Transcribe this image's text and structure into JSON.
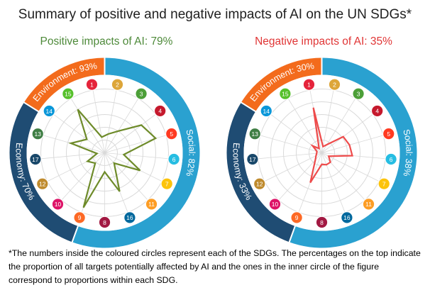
{
  "title": "Summary of positive and negative impacts of AI on the UN SDGs*",
  "footnote": "*The numbers inside the coloured circles represent each of the SDGs. The percentages on the top indicate the proportion of all targets potentially affected by AI and the ones in the inner circle of the figure correspond to proportions within each SDG.",
  "colors": {
    "environment": "#f36b1c",
    "social": "#2aa1d0",
    "economy": "#1f4c73",
    "positive_line": "#6e8b2a",
    "negative_line": "#ee4b4b",
    "grid": "#d9d9d9"
  },
  "sdg_colors": {
    "1": "#e5243b",
    "2": "#dda63a",
    "3": "#4c9f38",
    "4": "#c5192d",
    "5": "#ff3a21",
    "6": "#26bde2",
    "7": "#fcc30b",
    "8": "#a21942",
    "9": "#fd6925",
    "10": "#dd1367",
    "11": "#fd9d24",
    "12": "#bf8b2e",
    "13": "#3f7e44",
    "14": "#0a97d9",
    "15": "#56c02b",
    "16": "#00689d",
    "17": "#19486a"
  },
  "chart_data": [
    {
      "type": "radar",
      "subtitle": "Positive impacts of AI: 79%",
      "series_color": "positive_line",
      "sdg_order": [
        1,
        2,
        3,
        4,
        5,
        6,
        7,
        11,
        16,
        8,
        9,
        10,
        12,
        17,
        13,
        14,
        15
      ],
      "ring": [
        {
          "name": "Social",
          "label": "Social: 82%",
          "value": 82
        },
        {
          "name": "Economy",
          "label": "Economy: 70%",
          "value": 70
        },
        {
          "name": "Environment",
          "label": "Environment: 93%",
          "value": 93
        }
      ],
      "values": [
        0.25,
        0.3,
        0.4,
        0.72,
        0.83,
        0.3,
        0.62,
        0.22,
        0.65,
        0.3,
        0.92,
        0.22,
        0.3,
        0.12,
        0.55,
        0.35,
        0.8
      ]
    },
    {
      "type": "radar",
      "subtitle": "Negative impacts of AI: 35%",
      "series_color": "negative_line",
      "sdg_order": [
        1,
        2,
        3,
        4,
        5,
        6,
        7,
        11,
        16,
        8,
        9,
        10,
        12,
        17,
        13,
        14,
        15
      ],
      "ring": [
        {
          "name": "Social",
          "label": "Social: 38%",
          "value": 38
        },
        {
          "name": "Economy",
          "label": "Economy: 33%",
          "value": 33
        },
        {
          "name": "Environment",
          "label": "Environment: 30%",
          "value": 30
        }
      ],
      "values": [
        0.72,
        0.1,
        0.15,
        0.42,
        0.45,
        0.48,
        0.12,
        0.2,
        0.2,
        0.18,
        0.5,
        0.15,
        0.1,
        0.08,
        0.08,
        0.18,
        0.08
      ]
    }
  ]
}
